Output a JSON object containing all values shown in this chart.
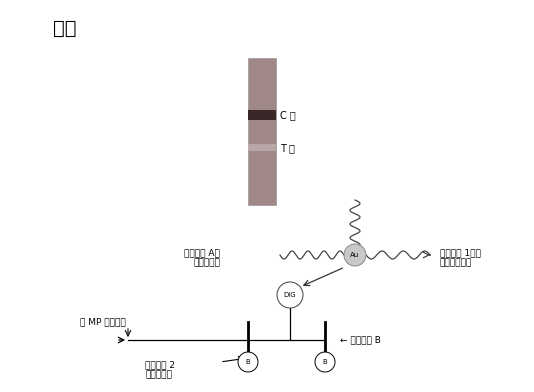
{
  "title": "阴性",
  "background_color": "#ffffff",
  "strip_color": "#a08888",
  "c_line_color": "#3a2828",
  "t_line_color": "#c0b0b0",
  "c_label": "C 线",
  "t_label": "T 线",
  "label_probe_a": "特异探针 A，\n标记地高辛",
  "label_probe_1": "通用探针 1，标\n记胶体金颗粒",
  "label_probe_b": "特异探针 B",
  "label_probe_2": "通用探针 2\n标记生物素",
  "label_no_mp": "无 MP 核酸片段",
  "label_dig": "DIG",
  "label_au": "Au"
}
